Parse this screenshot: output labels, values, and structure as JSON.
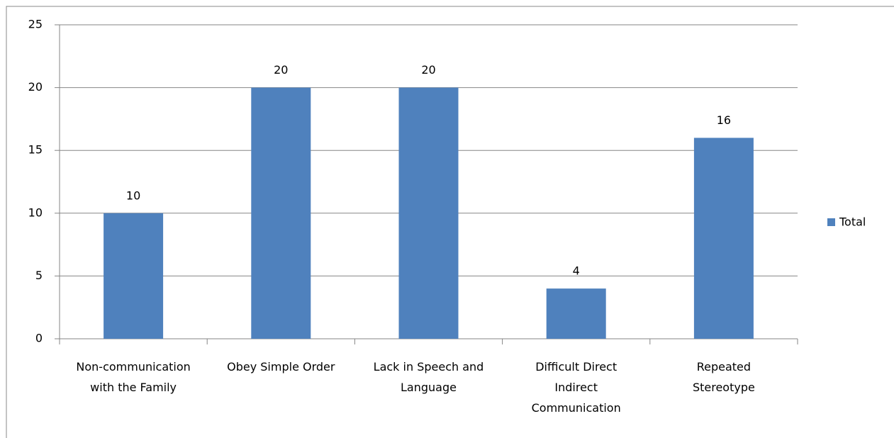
{
  "chart_data": {
    "type": "bar",
    "categories": [
      "Non-communication\nwith the Family",
      "Obey Simple  Order",
      "Lack in Speech  and\nLanguage",
      "Difficult Direct\nIndirect\nCommunication",
      "Repeated\nStereotype"
    ],
    "series": [
      {
        "name": "Total",
        "color": "#4f81bd",
        "values": [
          10,
          20,
          20,
          4,
          16
        ]
      }
    ],
    "ylim": [
      0,
      25
    ],
    "yticks": [
      0,
      5,
      10,
      15,
      20,
      25
    ],
    "grid": true,
    "legend": "right"
  }
}
